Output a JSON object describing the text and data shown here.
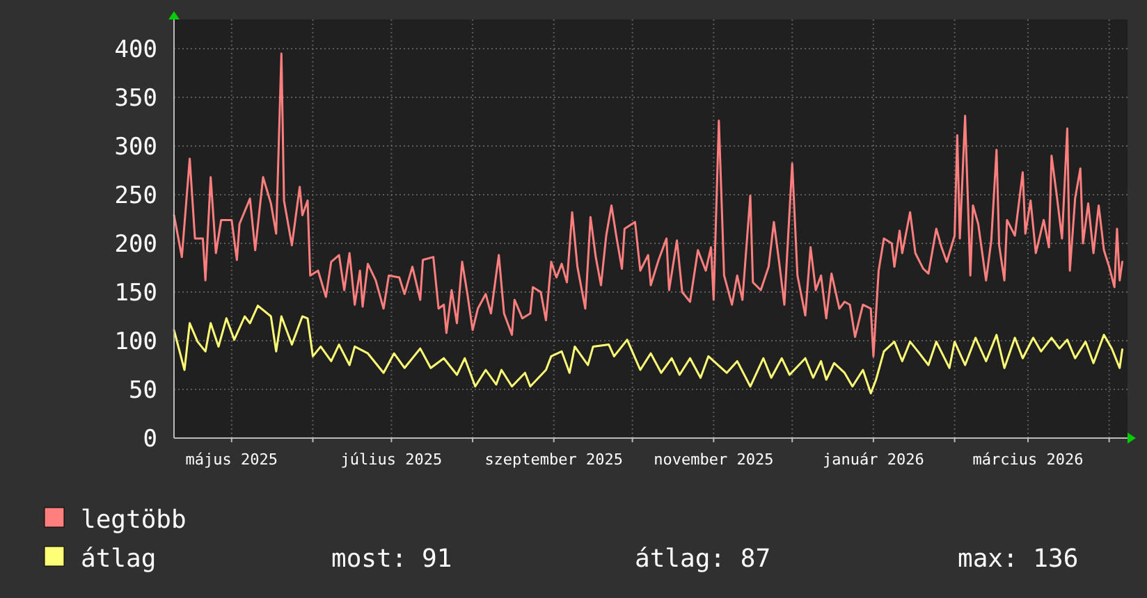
{
  "chart_data": {
    "type": "line",
    "xlim": [
      "2025-04-09",
      "2026-04-08"
    ],
    "xticks": [
      {
        "value": "2025-05-01",
        "label": "május 2025"
      },
      {
        "value": "2025-06-01",
        "label": null
      },
      {
        "value": "2025-07-01",
        "label": "július 2025"
      },
      {
        "value": "2025-08-01",
        "label": null
      },
      {
        "value": "2025-09-01",
        "label": "szeptember 2025"
      },
      {
        "value": "2025-10-01",
        "label": null
      },
      {
        "value": "2025-11-01",
        "label": "november 2025"
      },
      {
        "value": "2025-12-01",
        "label": null
      },
      {
        "value": "2026-01-01",
        "label": "január 2026"
      },
      {
        "value": "2026-02-01",
        "label": null
      },
      {
        "value": "2026-03-01",
        "label": "március 2026"
      },
      {
        "value": "2026-04-01",
        "label": null
      }
    ],
    "ylim": [
      0,
      430
    ],
    "yticks": [
      0,
      50,
      100,
      150,
      200,
      250,
      300,
      350,
      400
    ],
    "grid": true,
    "legend": "bottom",
    "line_style": "solid",
    "marker": "none",
    "annotations": [
      "most: 91",
      "átlag: 87",
      "max: 136"
    ],
    "series": [
      {
        "name": "legtöbb",
        "color": "#ff7f7f",
        "x": [
          "2025-04-09",
          "2025-04-12",
          "2025-04-15",
          "2025-04-17",
          "2025-04-20",
          "2025-04-21",
          "2025-04-23",
          "2025-04-25",
          "2025-04-27",
          "2025-05-01",
          "2025-05-03",
          "2025-05-04",
          "2025-05-08",
          "2025-05-10",
          "2025-05-13",
          "2025-05-16",
          "2025-05-18",
          "2025-05-20",
          "2025-05-21",
          "2025-05-24",
          "2025-05-27",
          "2025-05-28",
          "2025-05-30",
          "2025-05-31",
          "2025-06-03",
          "2025-06-06",
          "2025-06-08",
          "2025-06-11",
          "2025-06-13",
          "2025-06-15",
          "2025-06-17",
          "2025-06-19",
          "2025-06-20",
          "2025-06-22",
          "2025-06-25",
          "2025-06-28",
          "2025-06-30",
          "2025-07-04",
          "2025-07-06",
          "2025-07-09",
          "2025-07-12",
          "2025-07-13",
          "2025-07-17",
          "2025-07-19",
          "2025-07-21",
          "2025-07-22",
          "2025-07-24",
          "2025-07-26",
          "2025-07-28",
          "2025-07-30",
          "2025-08-01",
          "2025-08-03",
          "2025-08-06",
          "2025-08-08",
          "2025-08-11",
          "2025-08-13",
          "2025-08-16",
          "2025-08-17",
          "2025-08-20",
          "2025-08-23",
          "2025-08-24",
          "2025-08-27",
          "2025-08-29",
          "2025-08-31",
          "2025-09-02",
          "2025-09-04",
          "2025-09-06",
          "2025-09-08",
          "2025-09-10",
          "2025-09-13",
          "2025-09-15",
          "2025-09-17",
          "2025-09-19",
          "2025-09-21",
          "2025-09-23",
          "2025-09-25",
          "2025-09-27",
          "2025-09-28",
          "2025-10-02",
          "2025-10-04",
          "2025-10-07",
          "2025-10-08",
          "2025-10-11",
          "2025-10-14",
          "2025-10-15",
          "2025-10-18",
          "2025-10-20",
          "2025-10-23",
          "2025-10-26",
          "2025-10-29",
          "2025-10-31",
          "2025-11-01",
          "2025-11-03",
          "2025-11-05",
          "2025-11-08",
          "2025-11-10",
          "2025-11-12",
          "2025-11-15",
          "2025-11-16",
          "2025-11-19",
          "2025-11-22",
          "2025-11-24",
          "2025-11-26",
          "2025-11-28",
          "2025-12-01",
          "2025-12-03",
          "2025-12-06",
          "2025-12-08",
          "2025-12-10",
          "2025-12-12",
          "2025-12-14",
          "2025-12-16",
          "2025-12-19",
          "2025-12-21",
          "2025-12-23",
          "2025-12-25",
          "2025-12-28",
          "2025-12-31",
          "2026-01-01",
          "2026-01-03",
          "2026-01-05",
          "2026-01-08",
          "2026-01-09",
          "2026-01-11",
          "2026-01-12",
          "2026-01-15",
          "2026-01-17",
          "2026-01-20",
          "2026-01-22",
          "2026-01-25",
          "2026-01-27",
          "2026-01-29",
          "2026-02-01",
          "2026-02-02",
          "2026-02-03",
          "2026-02-05",
          "2026-02-07",
          "2026-02-08",
          "2026-02-10",
          "2026-02-13",
          "2026-02-15",
          "2026-02-17",
          "2026-02-18",
          "2026-02-20",
          "2026-02-21",
          "2026-02-24",
          "2026-02-27",
          "2026-02-28",
          "2026-03-02",
          "2026-03-04",
          "2026-03-07",
          "2026-03-09",
          "2026-03-10",
          "2026-03-12",
          "2026-03-14",
          "2026-03-16",
          "2026-03-17",
          "2026-03-19",
          "2026-03-21",
          "2026-03-22",
          "2026-03-24",
          "2026-03-26",
          "2026-03-28",
          "2026-03-30",
          "2026-04-01",
          "2026-04-03",
          "2026-04-04",
          "2026-04-05",
          "2026-04-06"
        ],
        "values": [
          229,
          186,
          287,
          205,
          205,
          162,
          268,
          190,
          224,
          224,
          183,
          220,
          246,
          193,
          268,
          241,
          210,
          395,
          244,
          198,
          258,
          229,
          244,
          167,
          172,
          145,
          181,
          188,
          152,
          190,
          137,
          172,
          135,
          179,
          162,
          133,
          167,
          165,
          148,
          176,
          142,
          183,
          186,
          133,
          137,
          108,
          152,
          118,
          181,
          148,
          111,
          133,
          148,
          128,
          188,
          128,
          106,
          142,
          123,
          128,
          155,
          150,
          121,
          181,
          165,
          179,
          160,
          232,
          176,
          133,
          227,
          186,
          157,
          208,
          239,
          205,
          174,
          215,
          222,
          172,
          188,
          157,
          183,
          205,
          152,
          203,
          150,
          140,
          193,
          172,
          196,
          142,
          326,
          167,
          137,
          167,
          142,
          249,
          160,
          152,
          176,
          222,
          181,
          137,
          282,
          167,
          126,
          196,
          152,
          167,
          123,
          169,
          133,
          140,
          137,
          104,
          137,
          133,
          84,
          172,
          205,
          200,
          176,
          213,
          190,
          232,
          190,
          174,
          169,
          215,
          196,
          181,
          208,
          311,
          205,
          331,
          167,
          239,
          220,
          162,
          203,
          296,
          198,
          162,
          224,
          208,
          273,
          210,
          244,
          190,
          224,
          196,
          290,
          249,
          205,
          318,
          172,
          246,
          277,
          200,
          241,
          190,
          239,
          193,
          176,
          155,
          215,
          162,
          181
        ]
      },
      {
        "name": "átlag",
        "color": "#ffff77",
        "x": [
          "2025-04-09",
          "2025-04-13",
          "2025-04-15",
          "2025-04-18",
          "2025-04-21",
          "2025-04-23",
          "2025-04-26",
          "2025-04-29",
          "2025-05-02",
          "2025-05-06",
          "2025-05-08",
          "2025-05-11",
          "2025-05-16",
          "2025-05-18",
          "2025-05-20",
          "2025-05-24",
          "2025-05-28",
          "2025-05-30",
          "2025-06-01",
          "2025-06-04",
          "2025-06-08",
          "2025-06-11",
          "2025-06-15",
          "2025-06-17",
          "2025-06-22",
          "2025-06-28",
          "2025-07-02",
          "2025-07-06",
          "2025-07-12",
          "2025-07-16",
          "2025-07-21",
          "2025-07-26",
          "2025-07-29",
          "2025-08-02",
          "2025-08-06",
          "2025-08-10",
          "2025-08-12",
          "2025-08-16",
          "2025-08-21",
          "2025-08-23",
          "2025-08-29",
          "2025-08-31",
          "2025-09-04",
          "2025-09-07",
          "2025-09-09",
          "2025-09-14",
          "2025-09-16",
          "2025-09-22",
          "2025-09-24",
          "2025-09-29",
          "2025-10-04",
          "2025-10-08",
          "2025-10-12",
          "2025-10-16",
          "2025-10-19",
          "2025-10-23",
          "2025-10-27",
          "2025-10-30",
          "2025-11-06",
          "2025-11-10",
          "2025-11-15",
          "2025-11-20",
          "2025-11-23",
          "2025-11-27",
          "2025-11-30",
          "2025-12-06",
          "2025-12-09",
          "2025-12-12",
          "2025-12-14",
          "2025-12-17",
          "2025-12-21",
          "2025-12-24",
          "2025-12-28",
          "2025-12-31",
          "2026-01-02",
          "2026-01-05",
          "2026-01-09",
          "2026-01-12",
          "2026-01-15",
          "2026-01-18",
          "2026-01-22",
          "2026-01-25",
          "2026-01-30",
          "2026-02-01",
          "2026-02-05",
          "2026-02-09",
          "2026-02-13",
          "2026-02-17",
          "2026-02-20",
          "2026-02-24",
          "2026-02-27",
          "2026-03-03",
          "2026-03-06",
          "2026-03-10",
          "2026-03-13",
          "2026-03-16",
          "2026-03-19",
          "2026-03-23",
          "2026-03-26",
          "2026-03-30",
          "2026-04-02",
          "2026-04-05",
          "2026-04-06"
        ],
        "values": [
          111,
          70,
          118,
          99,
          89,
          118,
          94,
          123,
          101,
          125,
          118,
          136,
          125,
          89,
          125,
          96,
          125,
          123,
          84,
          94,
          79,
          96,
          75,
          94,
          87,
          67,
          87,
          72,
          92,
          72,
          82,
          65,
          82,
          53,
          70,
          55,
          70,
          53,
          67,
          53,
          70,
          84,
          89,
          67,
          94,
          75,
          94,
          96,
          84,
          101,
          70,
          87,
          67,
          82,
          65,
          82,
          62,
          84,
          67,
          79,
          53,
          82,
          62,
          82,
          65,
          82,
          62,
          79,
          60,
          77,
          67,
          53,
          70,
          46,
          60,
          89,
          99,
          79,
          99,
          89,
          75,
          99,
          72,
          99,
          75,
          103,
          79,
          106,
          72,
          103,
          82,
          103,
          89,
          103,
          92,
          101,
          82,
          99,
          77,
          106,
          92,
          72,
          91
        ]
      }
    ]
  }
}
